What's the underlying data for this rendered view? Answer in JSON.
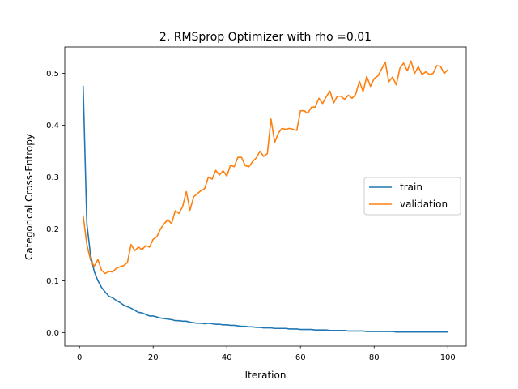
{
  "chart_data": {
    "type": "line",
    "title": "2. RMSprop Optimizer with rho =0.01",
    "xlabel": "Iteration",
    "ylabel": "Categorical Cross-Entropy",
    "xlim": [
      -4.0,
      105.0
    ],
    "ylim": [
      -0.026,
      0.551
    ],
    "xticks": [
      0,
      20,
      40,
      60,
      80,
      100
    ],
    "yticks": [
      0.0,
      0.1,
      0.2,
      0.3,
      0.4,
      0.5
    ],
    "xtick_labels": [
      "0",
      "20",
      "40",
      "60",
      "80",
      "100"
    ],
    "ytick_labels": [
      "0.0",
      "0.1",
      "0.2",
      "0.3",
      "0.4",
      "0.5"
    ],
    "grid": false,
    "legend_position": "center-right",
    "x": [
      1,
      2,
      3,
      4,
      5,
      6,
      7,
      8,
      9,
      10,
      11,
      12,
      13,
      14,
      15,
      16,
      17,
      18,
      19,
      20,
      21,
      22,
      23,
      24,
      25,
      26,
      27,
      28,
      29,
      30,
      31,
      32,
      33,
      34,
      35,
      36,
      37,
      38,
      39,
      40,
      41,
      42,
      43,
      44,
      45,
      46,
      47,
      48,
      49,
      50,
      51,
      52,
      53,
      54,
      55,
      56,
      57,
      58,
      59,
      60,
      61,
      62,
      63,
      64,
      65,
      66,
      67,
      68,
      69,
      70,
      71,
      72,
      73,
      74,
      75,
      76,
      77,
      78,
      79,
      80,
      81,
      82,
      83,
      84,
      85,
      86,
      87,
      88,
      89,
      90,
      91,
      92,
      93,
      94,
      95,
      96,
      97,
      98,
      99,
      100
    ],
    "series": [
      {
        "name": "train",
        "color": "#1f77b4",
        "values": [
          0.475,
          0.21,
          0.15,
          0.118,
          0.1,
          0.087,
          0.078,
          0.07,
          0.067,
          0.062,
          0.058,
          0.053,
          0.05,
          0.047,
          0.043,
          0.039,
          0.038,
          0.035,
          0.032,
          0.032,
          0.03,
          0.028,
          0.027,
          0.026,
          0.025,
          0.023,
          0.023,
          0.022,
          0.022,
          0.02,
          0.019,
          0.018,
          0.018,
          0.017,
          0.018,
          0.017,
          0.016,
          0.016,
          0.015,
          0.015,
          0.014,
          0.014,
          0.013,
          0.012,
          0.012,
          0.011,
          0.011,
          0.01,
          0.01,
          0.009,
          0.009,
          0.009,
          0.008,
          0.008,
          0.008,
          0.008,
          0.007,
          0.007,
          0.007,
          0.006,
          0.006,
          0.006,
          0.006,
          0.005,
          0.005,
          0.005,
          0.005,
          0.004,
          0.004,
          0.004,
          0.004,
          0.004,
          0.003,
          0.003,
          0.003,
          0.003,
          0.003,
          0.002,
          0.002,
          0.002,
          0.002,
          0.002,
          0.002,
          0.002,
          0.002,
          0.001,
          0.001,
          0.001,
          0.001,
          0.001,
          0.001,
          0.001,
          0.001,
          0.001,
          0.001,
          0.001,
          0.001,
          0.001,
          0.001,
          0.001
        ]
      },
      {
        "name": "validation",
        "color": "#ff7f0e",
        "values": [
          0.225,
          0.17,
          0.14,
          0.128,
          0.141,
          0.12,
          0.114,
          0.118,
          0.117,
          0.124,
          0.127,
          0.129,
          0.135,
          0.17,
          0.158,
          0.165,
          0.16,
          0.168,
          0.165,
          0.18,
          0.185,
          0.2,
          0.21,
          0.218,
          0.21,
          0.235,
          0.23,
          0.243,
          0.272,
          0.236,
          0.262,
          0.268,
          0.274,
          0.278,
          0.3,
          0.296,
          0.313,
          0.304,
          0.312,
          0.302,
          0.323,
          0.32,
          0.338,
          0.338,
          0.322,
          0.32,
          0.33,
          0.337,
          0.35,
          0.34,
          0.345,
          0.412,
          0.367,
          0.385,
          0.394,
          0.392,
          0.394,
          0.392,
          0.39,
          0.428,
          0.428,
          0.423,
          0.435,
          0.435,
          0.452,
          0.442,
          0.455,
          0.466,
          0.443,
          0.456,
          0.456,
          0.45,
          0.458,
          0.452,
          0.46,
          0.485,
          0.465,
          0.494,
          0.475,
          0.49,
          0.495,
          0.508,
          0.522,
          0.484,
          0.493,
          0.478,
          0.51,
          0.52,
          0.505,
          0.524,
          0.5,
          0.513,
          0.498,
          0.503,
          0.498,
          0.5,
          0.515,
          0.514,
          0.5,
          0.507
        ]
      }
    ]
  }
}
